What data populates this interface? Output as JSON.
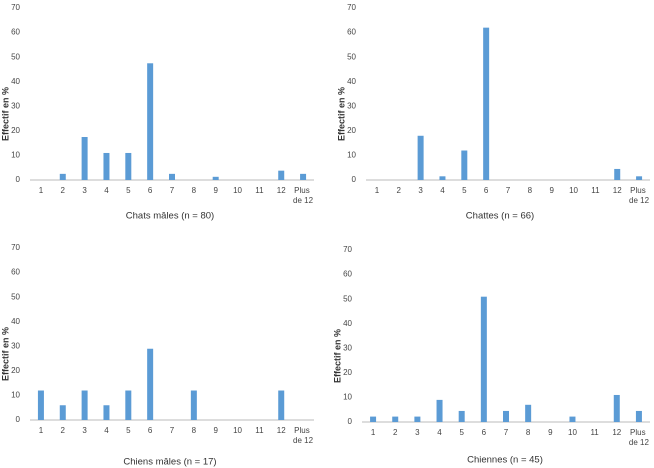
{
  "chart_data": [
    {
      "type": "bar",
      "title": "Chats mâles (n = 80)",
      "y_label": "Effectif en %",
      "categories": [
        "1",
        "2",
        "3",
        "4",
        "5",
        "6",
        "7",
        "8",
        "9",
        "10",
        "11",
        "12",
        "Plus de 12"
      ],
      "values": [
        0,
        2.5,
        17.5,
        11,
        11,
        47.5,
        2.5,
        0,
        1.3,
        0,
        0,
        3.8,
        2.5
      ],
      "color": "#5b9bd5",
      "ylim": [
        0,
        70
      ],
      "yticks": [
        0,
        10,
        20,
        30,
        40,
        50,
        60,
        70
      ],
      "grid": false
    },
    {
      "type": "bar",
      "title": "Chattes (n = 66)",
      "y_label": "Effectif en %",
      "categories": [
        "1",
        "2",
        "3",
        "4",
        "5",
        "6",
        "7",
        "8",
        "9",
        "10",
        "11",
        "12",
        "Plus de 12"
      ],
      "values": [
        0,
        0,
        18,
        1.5,
        12,
        62,
        0,
        0,
        0,
        0,
        0,
        4.5,
        1.5
      ],
      "color": "#5b9bd5",
      "ylim": [
        0,
        70
      ],
      "yticks": [
        0,
        10,
        20,
        30,
        40,
        50,
        60,
        70
      ],
      "grid": false
    },
    {
      "type": "bar",
      "title": "Chiens mâles (n = 17)",
      "y_label": "Effectif en %",
      "categories": [
        "1",
        "2",
        "3",
        "4",
        "5",
        "6",
        "7",
        "8",
        "9",
        "10",
        "11",
        "12",
        "Plus de 12"
      ],
      "values": [
        12,
        6,
        12,
        6,
        12,
        29,
        0,
        12,
        0,
        0,
        0,
        12,
        0
      ],
      "color": "#5b9bd5",
      "ylim": [
        0,
        70
      ],
      "yticks": [
        0,
        10,
        20,
        30,
        40,
        50,
        60,
        70
      ],
      "grid": false
    },
    {
      "type": "bar",
      "title": "Chiennes (n = 45)",
      "y_label": "Effectif en %",
      "categories": [
        "1",
        "2",
        "3",
        "4",
        "5",
        "6",
        "7",
        "8",
        "9",
        "10",
        "11",
        "12",
        "Plus de 12"
      ],
      "values": [
        2.2,
        2.2,
        2.2,
        9,
        4.5,
        51,
        4.5,
        7,
        0,
        2.2,
        0,
        11,
        4.5
      ],
      "color": "#5b9bd5",
      "ylim": [
        0,
        70
      ],
      "yticks": [
        0,
        10,
        20,
        30,
        40,
        50,
        60,
        70
      ],
      "grid": false
    }
  ]
}
